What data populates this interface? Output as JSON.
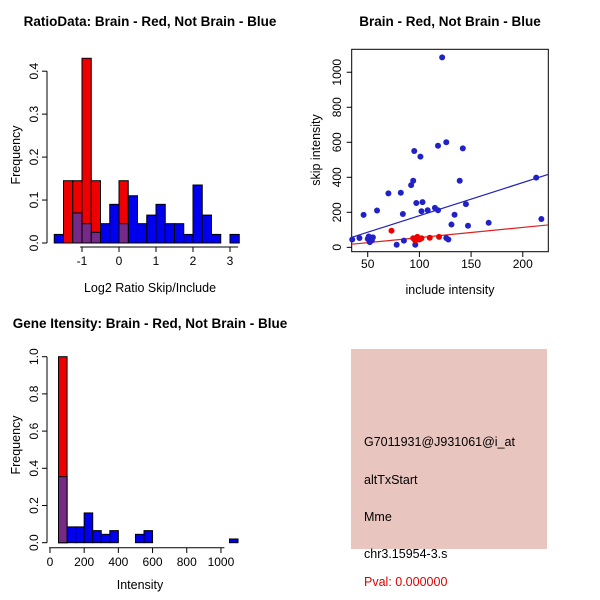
{
  "colors": {
    "bar_blue": "#0000ee",
    "bar_red": "#ee0000",
    "overlap_purple": "#752a87",
    "point_blue": "#2121c8",
    "point_red": "#ee0000",
    "line_blue": "#2222bb",
    "line_red": "#dd2222",
    "info_bg": "#e8c5be",
    "pval_red": "#dd0000"
  },
  "panels": {
    "ratio_hist": {
      "title": "RatioData: Brain - Red, Not Brain - Blue",
      "xlabel": "Log2 Ratio Skip/Include",
      "ylabel": "Frequency"
    },
    "scatter": {
      "title": "Brain - Red, Not Brain - Blue",
      "xlabel": "include intensity",
      "ylabel": "skip intensity"
    },
    "gene_hist": {
      "title": "Gene Itensity: Brain - Red, Not Brain - Blue",
      "xlabel": "Intensity",
      "ylabel": "Frequency"
    },
    "info_box": {
      "probe_id": "G7011931@J931061@i_at",
      "event_type": "altTxStart",
      "gene": "Mme",
      "location": "chr3.15954-3.s",
      "pval": "Pval: 0.000000"
    }
  },
  "chart_data": [
    {
      "type": "bar",
      "title": "RatioData: Brain - Red, Not Brain - Blue",
      "xlabel": "Log2 Ratio Skip/Include",
      "ylabel": "Frequency",
      "xlim": [
        -1.9,
        3.4
      ],
      "ylim": [
        0,
        0.44
      ],
      "bin_width": 0.25,
      "xticks": {
        "values": [
          -1,
          0,
          1,
          2,
          3
        ],
        "labels": [
          "-1",
          "0",
          "1",
          "2",
          "3"
        ]
      },
      "yticks": {
        "values": [
          0,
          0.1,
          0.2,
          0.3,
          0.4
        ],
        "labels": [
          "0.0",
          "0.1",
          "0.2",
          "0.3",
          "0.4"
        ]
      },
      "series": [
        {
          "name": "Not Brain",
          "colorKey": "bar_blue",
          "bars": [
            [
              -1.75,
              0.02
            ],
            [
              -1.25,
              0.07
            ],
            [
              -1.0,
              0.045
            ],
            [
              -0.75,
              0.025
            ],
            [
              -0.5,
              0.045
            ],
            [
              -0.25,
              0.09
            ],
            [
              0,
              0.045
            ],
            [
              0.25,
              0.11
            ],
            [
              0.5,
              0.045
            ],
            [
              0.75,
              0.065
            ],
            [
              1.0,
              0.09
            ],
            [
              1.25,
              0.045
            ],
            [
              1.5,
              0.045
            ],
            [
              1.75,
              0.02
            ],
            [
              2.0,
              0.135
            ],
            [
              2.25,
              0.065
            ],
            [
              2.5,
              0.02
            ],
            [
              3.0,
              0.02
            ]
          ]
        },
        {
          "name": "Brain",
          "colorKey": "bar_red",
          "bars": [
            [
              -1.5,
              0.145
            ],
            [
              -1.25,
              0.145
            ],
            [
              -1.0,
              0.43
            ],
            [
              -0.75,
              0.145
            ],
            [
              0,
              0.145
            ]
          ]
        },
        {
          "name": "Overlap",
          "colorKey": "overlap_purple",
          "bars": [
            [
              -1.25,
              0.07
            ],
            [
              -1.0,
              0.045
            ],
            [
              -0.75,
              0.025
            ],
            [
              0,
              0.045
            ]
          ]
        }
      ]
    },
    {
      "type": "scatter",
      "title": "Brain - Red, Not Brain - Blue",
      "xlabel": "include intensity",
      "ylabel": "skip intensity",
      "xlim": [
        34.5,
        224.7
      ],
      "ylim": [
        -25,
        1131
      ],
      "xticks": {
        "values": [
          50,
          100,
          150,
          200
        ],
        "labels": [
          "50",
          "100",
          "150",
          "200"
        ]
      },
      "yticks": {
        "values": [
          0,
          200,
          400,
          600,
          800,
          1000
        ],
        "labels": [
          "0",
          "200",
          "400",
          "600",
          "800",
          "1000"
        ]
      },
      "series": [
        {
          "name": "Not Brain",
          "colorKey": "point_blue",
          "points": [
            [
              35,
              45
            ],
            [
              42,
              53
            ],
            [
              46,
              185
            ],
            [
              50,
              48
            ],
            [
              51,
              62
            ],
            [
              52,
              30
            ],
            [
              54,
              40
            ],
            [
              55,
              57
            ],
            [
              59,
              210
            ],
            [
              70,
              308
            ],
            [
              78,
              15
            ],
            [
              82,
              312
            ],
            [
              84,
              190
            ],
            [
              85,
              38
            ],
            [
              92,
              355
            ],
            [
              94,
              380
            ],
            [
              95,
              550
            ],
            [
              96,
              15
            ],
            [
              97,
              253
            ],
            [
              101,
              518
            ],
            [
              102,
              206
            ],
            [
              103,
              258
            ],
            [
              108,
              212
            ],
            [
              115,
              225
            ],
            [
              118,
              212
            ],
            [
              118,
              580
            ],
            [
              122,
              1085
            ],
            [
              126,
              600
            ],
            [
              126,
              53
            ],
            [
              128,
              45
            ],
            [
              131,
              130
            ],
            [
              134,
              186
            ],
            [
              139,
              380
            ],
            [
              142,
              565
            ],
            [
              145,
              247
            ],
            [
              147,
              123
            ],
            [
              167,
              140
            ],
            [
              213,
              398
            ],
            [
              218,
              162
            ]
          ]
        },
        {
          "name": "Brain",
          "colorKey": "point_red",
          "points": [
            [
              73,
              95
            ],
            [
              94,
              52
            ],
            [
              96,
              38
            ],
            [
              98,
              60
            ],
            [
              100,
              45
            ],
            [
              102,
              52
            ],
            [
              110,
              55
            ],
            [
              119,
              60
            ]
          ]
        }
      ],
      "lines": [
        {
          "name": "Not Brain fit",
          "colorKey": "line_blue",
          "x1": 35,
          "y1": 58,
          "x2": 224.5,
          "y2": 416
        },
        {
          "name": "Brain fit",
          "colorKey": "line_red",
          "x1": 35,
          "y1": 18,
          "x2": 224.5,
          "y2": 128
        }
      ]
    },
    {
      "type": "bar",
      "title": "Gene Itensity: Brain - Red, Not Brain - Blue",
      "xlabel": "Intensity",
      "ylabel": "Frequency",
      "xlim": [
        -25,
        1170
      ],
      "ylim": [
        0,
        1.05
      ],
      "bin_width": 50,
      "xticks": {
        "values": [
          0,
          200,
          400,
          600,
          800,
          1000
        ],
        "labels": [
          "0",
          "200",
          "400",
          "600",
          "800",
          "1000"
        ]
      },
      "yticks": {
        "values": [
          0,
          0.2,
          0.4,
          0.6,
          0.8,
          1.0
        ],
        "labels": [
          "0.0",
          "0.2",
          "0.4",
          "0.6",
          "0.8",
          "1.0"
        ]
      },
      "series": [
        {
          "name": "Not Brain",
          "colorKey": "bar_blue",
          "bars": [
            [
              50,
              0.355
            ],
            [
              100,
              0.085
            ],
            [
              150,
              0.085
            ],
            [
              200,
              0.16
            ],
            [
              250,
              0.065
            ],
            [
              300,
              0.045
            ],
            [
              350,
              0.065
            ],
            [
              500,
              0.045
            ],
            [
              550,
              0.065
            ],
            [
              1050,
              0.02
            ]
          ]
        },
        {
          "name": "Brain",
          "colorKey": "bar_red",
          "bars": [
            [
              50,
              1.0
            ]
          ]
        },
        {
          "name": "Overlap",
          "colorKey": "overlap_purple",
          "bars": [
            [
              50,
              0.355
            ]
          ]
        }
      ]
    }
  ]
}
